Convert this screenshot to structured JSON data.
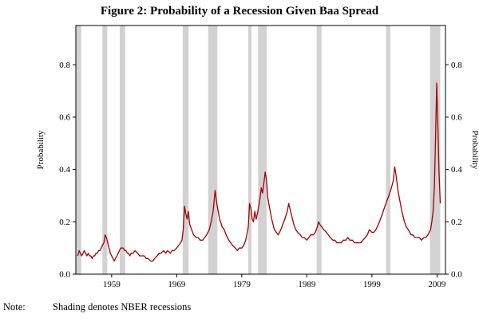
{
  "title": "Figure 2: Probability of a Recession Given Baa Spread",
  "note": {
    "label": "Note:",
    "text": "Shading denotes NBER recessions"
  },
  "chart_data": {
    "type": "line",
    "title": "Figure 2: Probability of a Recession Given Baa Spread",
    "xlabel": "",
    "ylabel_left": "Probability",
    "ylabel_right": "Probability",
    "xlim": [
      1953.5,
      2010.3
    ],
    "ylim": [
      0,
      0.95
    ],
    "xticks": [
      1959,
      1969,
      1979,
      1989,
      1999,
      2009
    ],
    "yticks": [
      0.0,
      0.2,
      0.4,
      0.6,
      0.8
    ],
    "grid": false,
    "legend_position": "none",
    "line_color": "#a00000",
    "recession_band_color": "#d2d2d2",
    "frame_color": "#000000",
    "recessions": [
      [
        1953.58,
        1954.33
      ],
      [
        1957.58,
        1958.33
      ],
      [
        1960.25,
        1961.08
      ],
      [
        1969.92,
        1970.83
      ],
      [
        1973.83,
        1975.25
      ],
      [
        1980.0,
        1980.5
      ],
      [
        1981.5,
        1982.83
      ],
      [
        1990.5,
        1991.25
      ],
      [
        2001.17,
        2001.83
      ],
      [
        2007.92,
        2009.5
      ]
    ],
    "series": [
      {
        "name": "Probability of a recession given Baa spread",
        "points": [
          [
            1953.8,
            0.07
          ],
          [
            1954.0,
            0.09
          ],
          [
            1954.2,
            0.08
          ],
          [
            1954.4,
            0.07
          ],
          [
            1954.6,
            0.08
          ],
          [
            1954.8,
            0.09
          ],
          [
            1955.0,
            0.08
          ],
          [
            1955.2,
            0.07
          ],
          [
            1955.4,
            0.08
          ],
          [
            1955.6,
            0.07
          ],
          [
            1955.8,
            0.07
          ],
          [
            1956.0,
            0.06
          ],
          [
            1956.2,
            0.07
          ],
          [
            1956.4,
            0.07
          ],
          [
            1956.6,
            0.08
          ],
          [
            1956.8,
            0.08
          ],
          [
            1957.0,
            0.09
          ],
          [
            1957.2,
            0.09
          ],
          [
            1957.4,
            0.1
          ],
          [
            1957.6,
            0.11
          ],
          [
            1957.8,
            0.12
          ],
          [
            1958.0,
            0.15
          ],
          [
            1958.2,
            0.14
          ],
          [
            1958.4,
            0.12
          ],
          [
            1958.6,
            0.1
          ],
          [
            1958.8,
            0.08
          ],
          [
            1959.0,
            0.07
          ],
          [
            1959.2,
            0.06
          ],
          [
            1959.4,
            0.05
          ],
          [
            1959.6,
            0.06
          ],
          [
            1959.8,
            0.07
          ],
          [
            1960.0,
            0.08
          ],
          [
            1960.2,
            0.09
          ],
          [
            1960.4,
            0.1
          ],
          [
            1960.6,
            0.1
          ],
          [
            1960.8,
            0.1
          ],
          [
            1961.0,
            0.09
          ],
          [
            1961.2,
            0.09
          ],
          [
            1961.4,
            0.08
          ],
          [
            1961.6,
            0.08
          ],
          [
            1961.8,
            0.07
          ],
          [
            1962.0,
            0.08
          ],
          [
            1962.3,
            0.08
          ],
          [
            1962.6,
            0.09
          ],
          [
            1963.0,
            0.08
          ],
          [
            1963.3,
            0.07
          ],
          [
            1963.6,
            0.07
          ],
          [
            1964.0,
            0.07
          ],
          [
            1964.3,
            0.06
          ],
          [
            1964.6,
            0.06
          ],
          [
            1965.0,
            0.05
          ],
          [
            1965.3,
            0.05
          ],
          [
            1965.6,
            0.06
          ],
          [
            1966.0,
            0.07
          ],
          [
            1966.3,
            0.08
          ],
          [
            1966.6,
            0.08
          ],
          [
            1967.0,
            0.09
          ],
          [
            1967.3,
            0.08
          ],
          [
            1967.6,
            0.09
          ],
          [
            1968.0,
            0.08
          ],
          [
            1968.3,
            0.09
          ],
          [
            1968.6,
            0.09
          ],
          [
            1969.0,
            0.1
          ],
          [
            1969.3,
            0.11
          ],
          [
            1969.6,
            0.12
          ],
          [
            1969.8,
            0.13
          ],
          [
            1970.0,
            0.17
          ],
          [
            1970.2,
            0.26
          ],
          [
            1970.4,
            0.23
          ],
          [
            1970.6,
            0.21
          ],
          [
            1970.8,
            0.24
          ],
          [
            1971.0,
            0.19
          ],
          [
            1971.3,
            0.17
          ],
          [
            1971.6,
            0.15
          ],
          [
            1972.0,
            0.14
          ],
          [
            1972.3,
            0.14
          ],
          [
            1972.6,
            0.13
          ],
          [
            1973.0,
            0.13
          ],
          [
            1973.3,
            0.14
          ],
          [
            1973.6,
            0.15
          ],
          [
            1974.0,
            0.17
          ],
          [
            1974.3,
            0.2
          ],
          [
            1974.6,
            0.24
          ],
          [
            1974.9,
            0.32
          ],
          [
            1975.1,
            0.28
          ],
          [
            1975.3,
            0.25
          ],
          [
            1975.6,
            0.21
          ],
          [
            1976.0,
            0.18
          ],
          [
            1976.3,
            0.17
          ],
          [
            1976.6,
            0.15
          ],
          [
            1977.0,
            0.13
          ],
          [
            1977.3,
            0.12
          ],
          [
            1977.6,
            0.11
          ],
          [
            1978.0,
            0.1
          ],
          [
            1978.3,
            0.09
          ],
          [
            1978.6,
            0.1
          ],
          [
            1979.0,
            0.1
          ],
          [
            1979.3,
            0.11
          ],
          [
            1979.6,
            0.13
          ],
          [
            1980.0,
            0.18
          ],
          [
            1980.2,
            0.27
          ],
          [
            1980.4,
            0.25
          ],
          [
            1980.6,
            0.21
          ],
          [
            1980.8,
            0.2
          ],
          [
            1981.0,
            0.24
          ],
          [
            1981.2,
            0.21
          ],
          [
            1981.4,
            0.23
          ],
          [
            1981.6,
            0.26
          ],
          [
            1981.8,
            0.29
          ],
          [
            1982.0,
            0.33
          ],
          [
            1982.2,
            0.31
          ],
          [
            1982.4,
            0.35
          ],
          [
            1982.6,
            0.39
          ],
          [
            1982.8,
            0.36
          ],
          [
            1983.0,
            0.29
          ],
          [
            1983.3,
            0.25
          ],
          [
            1983.6,
            0.21
          ],
          [
            1984.0,
            0.17
          ],
          [
            1984.3,
            0.16
          ],
          [
            1984.6,
            0.15
          ],
          [
            1985.0,
            0.17
          ],
          [
            1985.3,
            0.19
          ],
          [
            1985.6,
            0.21
          ],
          [
            1986.0,
            0.24
          ],
          [
            1986.2,
            0.27
          ],
          [
            1986.4,
            0.25
          ],
          [
            1986.6,
            0.23
          ],
          [
            1987.0,
            0.19
          ],
          [
            1987.3,
            0.17
          ],
          [
            1987.6,
            0.16
          ],
          [
            1988.0,
            0.15
          ],
          [
            1988.3,
            0.14
          ],
          [
            1988.6,
            0.14
          ],
          [
            1989.0,
            0.13
          ],
          [
            1989.3,
            0.14
          ],
          [
            1989.6,
            0.15
          ],
          [
            1990.0,
            0.15
          ],
          [
            1990.3,
            0.16
          ],
          [
            1990.6,
            0.18
          ],
          [
            1990.8,
            0.2
          ],
          [
            1991.0,
            0.19
          ],
          [
            1991.3,
            0.18
          ],
          [
            1991.6,
            0.17
          ],
          [
            1992.0,
            0.16
          ],
          [
            1992.3,
            0.15
          ],
          [
            1992.6,
            0.14
          ],
          [
            1993.0,
            0.13
          ],
          [
            1993.3,
            0.13
          ],
          [
            1993.6,
            0.12
          ],
          [
            1994.0,
            0.12
          ],
          [
            1994.3,
            0.12
          ],
          [
            1994.6,
            0.13
          ],
          [
            1995.0,
            0.13
          ],
          [
            1995.3,
            0.14
          ],
          [
            1995.6,
            0.13
          ],
          [
            1996.0,
            0.13
          ],
          [
            1996.3,
            0.12
          ],
          [
            1996.6,
            0.12
          ],
          [
            1997.0,
            0.12
          ],
          [
            1997.3,
            0.12
          ],
          [
            1997.6,
            0.13
          ],
          [
            1998.0,
            0.14
          ],
          [
            1998.3,
            0.15
          ],
          [
            1998.6,
            0.17
          ],
          [
            1999.0,
            0.16
          ],
          [
            1999.3,
            0.16
          ],
          [
            1999.6,
            0.17
          ],
          [
            2000.0,
            0.19
          ],
          [
            2000.3,
            0.21
          ],
          [
            2000.6,
            0.23
          ],
          [
            2001.0,
            0.26
          ],
          [
            2001.3,
            0.28
          ],
          [
            2001.6,
            0.3
          ],
          [
            2002.0,
            0.33
          ],
          [
            2002.3,
            0.36
          ],
          [
            2002.5,
            0.41
          ],
          [
            2002.7,
            0.38
          ],
          [
            2003.0,
            0.32
          ],
          [
            2003.3,
            0.28
          ],
          [
            2003.6,
            0.24
          ],
          [
            2004.0,
            0.2
          ],
          [
            2004.3,
            0.18
          ],
          [
            2004.6,
            0.17
          ],
          [
            2005.0,
            0.15
          ],
          [
            2005.3,
            0.15
          ],
          [
            2005.6,
            0.14
          ],
          [
            2006.0,
            0.14
          ],
          [
            2006.3,
            0.14
          ],
          [
            2006.6,
            0.13
          ],
          [
            2007.0,
            0.14
          ],
          [
            2007.3,
            0.14
          ],
          [
            2007.6,
            0.15
          ],
          [
            2008.0,
            0.17
          ],
          [
            2008.2,
            0.2
          ],
          [
            2008.4,
            0.24
          ],
          [
            2008.6,
            0.33
          ],
          [
            2008.8,
            0.55
          ],
          [
            2008.95,
            0.73
          ],
          [
            2009.1,
            0.6
          ],
          [
            2009.3,
            0.4
          ],
          [
            2009.5,
            0.27
          ]
        ]
      }
    ]
  }
}
